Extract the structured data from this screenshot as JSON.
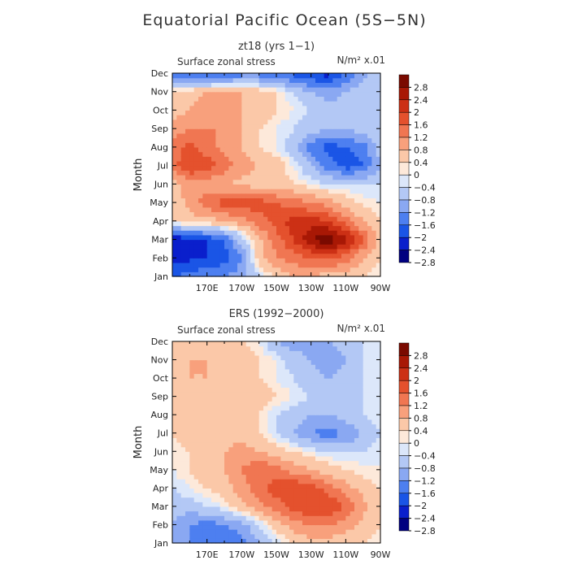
{
  "title": "Equatorial Pacific Ocean (5S−5N)",
  "colors": {
    "levels": [
      "#000080",
      "#0a1fcc",
      "#1a55e6",
      "#4d7ff0",
      "#8aa8f2",
      "#b3c8f5",
      "#dce7fa",
      "#fde9da",
      "#fbc8a8",
      "#f8a07c",
      "#f07652",
      "#e4512d",
      "#cc3015",
      "#a81805",
      "#7a0a00"
    ],
    "frame": "#000000"
  },
  "chart_data": [
    {
      "type": "contour",
      "subtitle": "zt18 (yrs 1−1)",
      "variable_label": "Surface zonal stress",
      "units_label": "N/m² x.01",
      "ylabel": "Month",
      "months": [
        "Jan",
        "Feb",
        "Mar",
        "Apr",
        "May",
        "Jun",
        "Jul",
        "Aug",
        "Sep",
        "Oct",
        "Nov",
        "Dec"
      ],
      "xticks": [
        "170E",
        "170W",
        "150W",
        "130W",
        "110W",
        "90W"
      ],
      "x": [
        150,
        160,
        170,
        180,
        190,
        200,
        210,
        220,
        230,
        240,
        250,
        260,
        270
      ],
      "values": [
        [
          -1.4,
          -1.2,
          -1.0,
          -1.0,
          -0.8,
          -0.2,
          0.3,
          0.6,
          0.6,
          0.4,
          0.3,
          0.2,
          0.0
        ],
        [
          -2.0,
          -1.9,
          -1.8,
          -1.6,
          -1.0,
          0.4,
          1.0,
          1.2,
          1.4,
          1.5,
          1.2,
          0.6,
          0.2
        ],
        [
          -2.2,
          -2.0,
          -1.8,
          -1.4,
          -0.4,
          0.5,
          1.2,
          1.8,
          2.6,
          2.9,
          2.4,
          1.4,
          0.4
        ],
        [
          0.2,
          0.4,
          0.4,
          0.6,
          0.8,
          1.2,
          1.6,
          2.0,
          2.0,
          1.8,
          1.2,
          0.6,
          0.2
        ],
        [
          0.2,
          0.8,
          1.2,
          1.6,
          1.7,
          1.6,
          1.4,
          1.2,
          1.0,
          0.8,
          0.4,
          0.1,
          0.0
        ],
        [
          0.4,
          0.8,
          0.8,
          0.6,
          0.5,
          0.4,
          0.4,
          0.2,
          0.0,
          -0.2,
          -0.2,
          -0.2,
          -0.2
        ],
        [
          1.2,
          1.8,
          1.6,
          1.2,
          0.8,
          0.6,
          0.4,
          0.0,
          -0.6,
          -1.2,
          -1.6,
          -1.4,
          -0.6
        ],
        [
          1.2,
          1.6,
          1.2,
          0.8,
          0.6,
          0.2,
          0.0,
          -0.4,
          -1.2,
          -1.6,
          -1.4,
          -1.2,
          -0.4
        ],
        [
          0.8,
          1.0,
          1.0,
          1.0,
          0.6,
          0.2,
          0.0,
          -0.2,
          -0.4,
          -0.6,
          -0.6,
          -0.4,
          -0.2
        ],
        [
          0.4,
          0.6,
          0.8,
          0.8,
          0.6,
          0.4,
          0.2,
          0.0,
          -0.2,
          -0.4,
          -0.4,
          -0.4,
          -0.4
        ],
        [
          0.2,
          0.4,
          0.6,
          0.8,
          0.6,
          0.4,
          0.2,
          -0.2,
          -0.6,
          -0.8,
          -0.6,
          -0.2,
          -0.2
        ],
        [
          -1.2,
          -1.4,
          -1.6,
          -1.6,
          -1.2,
          -1.2,
          -1.4,
          -1.6,
          -1.8,
          -2.0,
          -1.4,
          -0.8,
          -0.4
        ]
      ],
      "levels": [
        -2.8,
        -2.4,
        -2.0,
        -1.6,
        -1.2,
        -0.8,
        -0.4,
        0,
        0.4,
        0.8,
        1.2,
        1.6,
        2.0,
        2.4,
        2.8
      ],
      "colorbar_labels": [
        "2.8",
        "2.4",
        "2",
        "1.6",
        "1.2",
        "0.8",
        "0.4",
        "0",
        "−0.4",
        "−0.8",
        "−1.2",
        "−1.6",
        "−2",
        "−2.4",
        "−2.8"
      ]
    },
    {
      "type": "contour",
      "subtitle": "ERS (1992−2000)",
      "variable_label": "Surface zonal stress",
      "units_label": "N/m² x.01",
      "ylabel": "Month",
      "months": [
        "Jan",
        "Feb",
        "Mar",
        "Apr",
        "May",
        "Jun",
        "Jul",
        "Aug",
        "Sep",
        "Oct",
        "Nov",
        "Dec"
      ],
      "xticks": [
        "170E",
        "170W",
        "150W",
        "130W",
        "110W",
        "90W"
      ],
      "x": [
        150,
        160,
        170,
        180,
        190,
        200,
        210,
        220,
        230,
        240,
        250,
        260,
        270
      ],
      "values": [
        [
          -0.8,
          -1.0,
          -1.2,
          -1.4,
          -1.2,
          -0.6,
          -0.2,
          0.2,
          0.4,
          0.4,
          0.3,
          0.2,
          0.1
        ],
        [
          -0.6,
          -1.0,
          -1.2,
          -1.0,
          -0.8,
          -0.2,
          0.4,
          0.8,
          1.0,
          1.0,
          0.8,
          0.4,
          0.2
        ],
        [
          -0.4,
          -0.4,
          -0.2,
          0.0,
          0.4,
          0.8,
          1.2,
          1.6,
          1.8,
          1.8,
          1.4,
          0.8,
          0.2
        ],
        [
          -0.2,
          0.0,
          0.2,
          0.4,
          0.8,
          1.2,
          1.6,
          1.8,
          1.6,
          1.2,
          0.8,
          0.4,
          0.2
        ],
        [
          0.0,
          0.2,
          0.4,
          0.6,
          1.0,
          1.4,
          1.2,
          0.8,
          0.6,
          0.4,
          0.2,
          0.1,
          0.0
        ],
        [
          0.0,
          0.2,
          0.4,
          0.6,
          0.8,
          0.6,
          0.4,
          0.2,
          0.0,
          -0.2,
          -0.2,
          -0.2,
          0.0
        ],
        [
          0.2,
          0.4,
          0.4,
          0.4,
          0.4,
          0.2,
          -0.2,
          -0.6,
          -1.0,
          -1.2,
          -1.0,
          -0.6,
          -0.2
        ],
        [
          0.4,
          0.4,
          0.4,
          0.4,
          0.4,
          0.2,
          -0.2,
          -0.4,
          -0.6,
          -0.6,
          -0.4,
          -0.2,
          0.0
        ],
        [
          0.4,
          0.4,
          0.6,
          0.4,
          0.4,
          0.4,
          0.2,
          0.0,
          -0.2,
          -0.4,
          -0.4,
          -0.2,
          0.0
        ],
        [
          0.4,
          0.6,
          0.6,
          0.4,
          0.4,
          0.2,
          0.0,
          -0.2,
          -0.4,
          -0.6,
          -0.4,
          -0.2,
          0.0
        ],
        [
          0.2,
          0.6,
          0.6,
          0.6,
          0.4,
          0.2,
          0.0,
          -0.4,
          -0.6,
          -0.8,
          -0.6,
          -0.2,
          0.0
        ],
        [
          0.2,
          0.4,
          0.4,
          0.4,
          0.2,
          0.0,
          -0.6,
          -0.8,
          -0.8,
          -0.6,
          -0.4,
          -0.2,
          0.0
        ]
      ],
      "levels": [
        -2.8,
        -2.4,
        -2.0,
        -1.6,
        -1.2,
        -0.8,
        -0.4,
        0,
        0.4,
        0.8,
        1.2,
        1.6,
        2.0,
        2.4,
        2.8
      ],
      "colorbar_labels": [
        "2.8",
        "2.4",
        "2",
        "1.6",
        "1.2",
        "0.8",
        "0.4",
        "0",
        "−0.4",
        "−0.8",
        "−1.2",
        "−1.6",
        "−2",
        "−2.4",
        "−2.8"
      ]
    }
  ]
}
